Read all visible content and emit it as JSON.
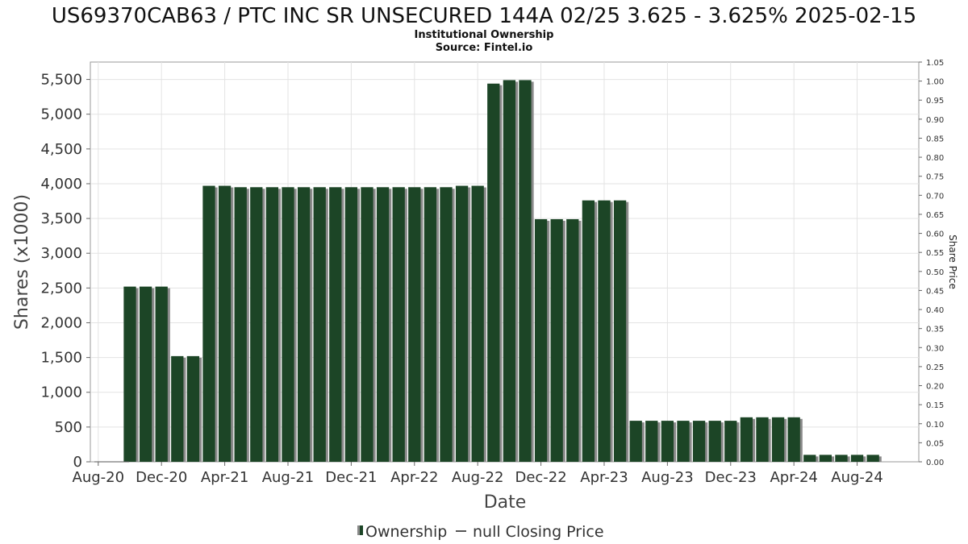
{
  "chart_data": {
    "type": "bar",
    "title": "US69370CAB63 / PTC INC SR UNSECURED 144A 02/25 3.625 - 3.625% 2025-02-15",
    "subtitle_lines": [
      "Institutional Ownership",
      "Source: Fintel.io"
    ],
    "xlabel": "Date",
    "ylabel": "Shares (x1000)",
    "y2label": "Share Price",
    "ylim": [
      0,
      5750
    ],
    "y2lim": [
      0,
      1.05
    ],
    "yticks": [
      0,
      500,
      1000,
      1500,
      2000,
      2500,
      3000,
      3500,
      4000,
      4500,
      5000,
      5500
    ],
    "ytick_labels": [
      "0",
      "500",
      "1,000",
      "1,500",
      "2,000",
      "2,500",
      "3,000",
      "3,500",
      "4,000",
      "4,500",
      "5,000",
      "5,500"
    ],
    "y2ticks": [
      "0.00",
      "0.05",
      "0.10",
      "0.15",
      "0.20",
      "0.25",
      "0.30",
      "0.35",
      "0.40",
      "0.45",
      "0.50",
      "0.55",
      "0.60",
      "0.65",
      "0.70",
      "0.75",
      "0.80",
      "0.85",
      "0.90",
      "0.95",
      "1.00",
      "1.05"
    ],
    "xticks": [
      {
        "label": "Aug-20",
        "month": 0
      },
      {
        "label": "Dec-20",
        "month": 4
      },
      {
        "label": "Apr-21",
        "month": 8
      },
      {
        "label": "Aug-21",
        "month": 12
      },
      {
        "label": "Dec-21",
        "month": 16
      },
      {
        "label": "Apr-22",
        "month": 20
      },
      {
        "label": "Aug-22",
        "month": 24
      },
      {
        "label": "Dec-22",
        "month": 28
      },
      {
        "label": "Apr-23",
        "month": 32
      },
      {
        "label": "Aug-23",
        "month": 36
      },
      {
        "label": "Dec-23",
        "month": 40
      },
      {
        "label": "Apr-24",
        "month": 44
      },
      {
        "label": "Aug-24",
        "month": 48
      }
    ],
    "grid": true,
    "legend_placement": "bottom",
    "series": [
      {
        "name": "Ownership",
        "type": "bar",
        "color": "#1c4526",
        "shadow_color": "#8a8a8a",
        "points": [
          {
            "month": 2.0,
            "value": 2520
          },
          {
            "month": 3.0,
            "value": 2520
          },
          {
            "month": 4.0,
            "value": 2520
          },
          {
            "month": 5.0,
            "value": 1520
          },
          {
            "month": 6.0,
            "value": 1520
          },
          {
            "month": 7.0,
            "value": 3970
          },
          {
            "month": 8.0,
            "value": 3970
          },
          {
            "month": 9.0,
            "value": 3950
          },
          {
            "month": 10.0,
            "value": 3950
          },
          {
            "month": 11.0,
            "value": 3950
          },
          {
            "month": 12.0,
            "value": 3950
          },
          {
            "month": 13.0,
            "value": 3950
          },
          {
            "month": 14.0,
            "value": 3950
          },
          {
            "month": 15.0,
            "value": 3950
          },
          {
            "month": 16.0,
            "value": 3950
          },
          {
            "month": 17.0,
            "value": 3950
          },
          {
            "month": 18.0,
            "value": 3950
          },
          {
            "month": 19.0,
            "value": 3950
          },
          {
            "month": 20.0,
            "value": 3950
          },
          {
            "month": 21.0,
            "value": 3950
          },
          {
            "month": 22.0,
            "value": 3950
          },
          {
            "month": 23.0,
            "value": 3970
          },
          {
            "month": 24.0,
            "value": 3970
          },
          {
            "month": 25.0,
            "value": 5440
          },
          {
            "month": 26.0,
            "value": 5490
          },
          {
            "month": 27.0,
            "value": 5490
          },
          {
            "month": 28.0,
            "value": 3490
          },
          {
            "month": 29.0,
            "value": 3490
          },
          {
            "month": 30.0,
            "value": 3490
          },
          {
            "month": 31.0,
            "value": 3760
          },
          {
            "month": 32.0,
            "value": 3760
          },
          {
            "month": 33.0,
            "value": 3760
          },
          {
            "month": 34.0,
            "value": 590
          },
          {
            "month": 35.0,
            "value": 590
          },
          {
            "month": 36.0,
            "value": 590
          },
          {
            "month": 37.0,
            "value": 590
          },
          {
            "month": 38.0,
            "value": 590
          },
          {
            "month": 39.0,
            "value": 590
          },
          {
            "month": 40.0,
            "value": 590
          },
          {
            "month": 41.0,
            "value": 640
          },
          {
            "month": 42.0,
            "value": 640
          },
          {
            "month": 43.0,
            "value": 640
          },
          {
            "month": 44.0,
            "value": 640
          },
          {
            "month": 45.0,
            "value": 100
          },
          {
            "month": 46.0,
            "value": 100
          },
          {
            "month": 47.0,
            "value": 100
          },
          {
            "month": 48.0,
            "value": 100
          },
          {
            "month": 49.0,
            "value": 100
          }
        ]
      },
      {
        "name": "null Closing Price",
        "type": "line",
        "color": "#555555",
        "points": []
      }
    ]
  }
}
